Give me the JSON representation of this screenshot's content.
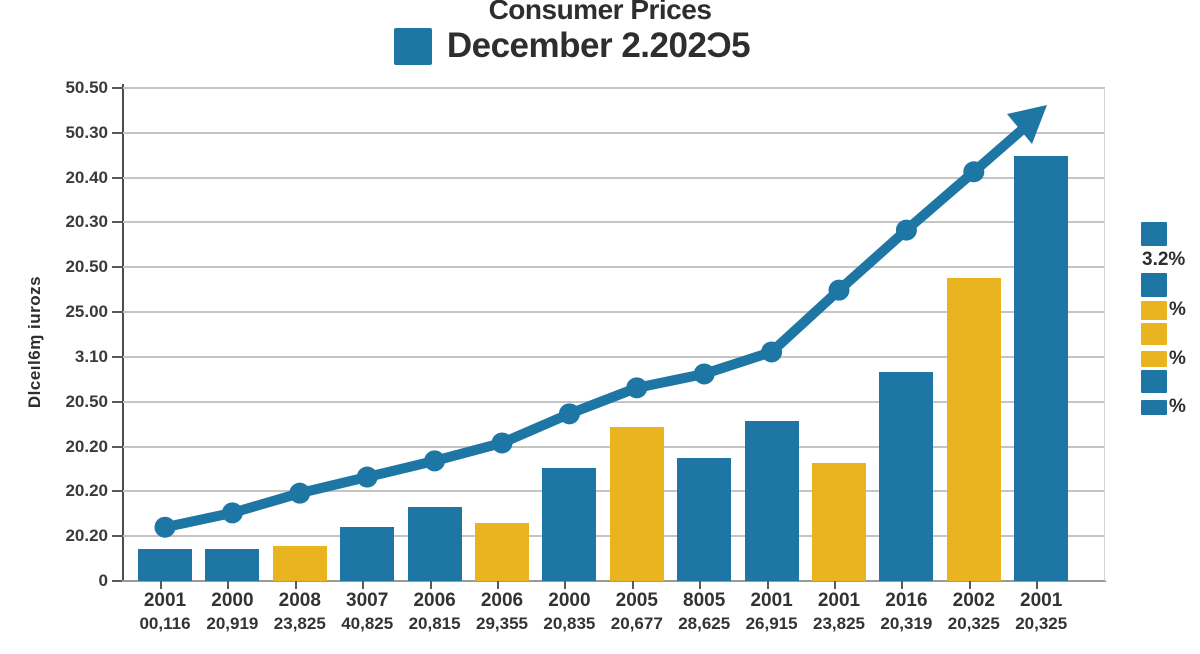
{
  "chart_data": {
    "type": "bar",
    "subtype": "bar-with-trend-line",
    "title": "Consumer Prices",
    "subtitle": "December 2.202Ɔ5",
    "ylabel": "Dlceıl6ɱ iurozs",
    "grid": true,
    "legend_position": "right",
    "ylim_ticks": [
      0,
      11
    ],
    "y_tick_labels": [
      "50.50",
      "50.30",
      "20.40",
      "20.30",
      "20.50",
      "25.00",
      "3.10",
      "20.50",
      "20.20",
      "20.20",
      "20.20",
      "0"
    ],
    "categories": [
      "2001",
      "2000",
      "2008",
      "3007",
      "2006",
      "2006",
      "2000",
      "2005",
      "8005",
      "2001",
      "2001",
      "2016",
      "2002",
      "2001"
    ],
    "category_sublabels": [
      "00,116",
      "20,919",
      "23,825",
      "40,825",
      "20,815",
      "29,355",
      "20,835",
      "20,677",
      "28,625",
      "26,915",
      "23,825",
      "20,319",
      "20,325",
      "20,325"
    ],
    "series": [
      {
        "name": "bars",
        "type": "bar",
        "point_colors": [
          "blue",
          "blue",
          "gold",
          "blue",
          "blue",
          "gold",
          "blue",
          "gold",
          "blue",
          "blue",
          "gold",
          "blue",
          "gold",
          "blue"
        ],
        "values_in_tick_units": [
          0.71,
          0.71,
          0.78,
          1.2,
          1.65,
          1.29,
          2.52,
          3.44,
          2.74,
          3.57,
          2.63,
          4.66,
          6.76,
          9.48
        ]
      },
      {
        "name": "trend-line",
        "type": "line",
        "color": "blue",
        "arrow_end": true,
        "values_in_tick_units": [
          1.2,
          1.52,
          1.96,
          2.32,
          2.68,
          3.08,
          3.73,
          4.31,
          4.62,
          5.11,
          6.49,
          7.83,
          9.13
        ]
      }
    ],
    "colors": {
      "blue": "#1d76a4",
      "gold": "#e9b41f",
      "grid": "#c4c4c4",
      "axis": "#4d4d4d",
      "text": "#333333"
    },
    "legend_items": [
      {
        "swatch": "blue",
        "label": ""
      },
      {
        "swatch": "",
        "label": "3.2%"
      },
      {
        "swatch": "blue",
        "label": ""
      },
      {
        "swatch": "gold",
        "label": "%"
      },
      {
        "swatch": "gold",
        "label": ""
      },
      {
        "swatch": "gold",
        "label": "%"
      },
      {
        "swatch": "blue",
        "label": ""
      },
      {
        "swatch": "blue",
        "label": "%"
      }
    ]
  }
}
